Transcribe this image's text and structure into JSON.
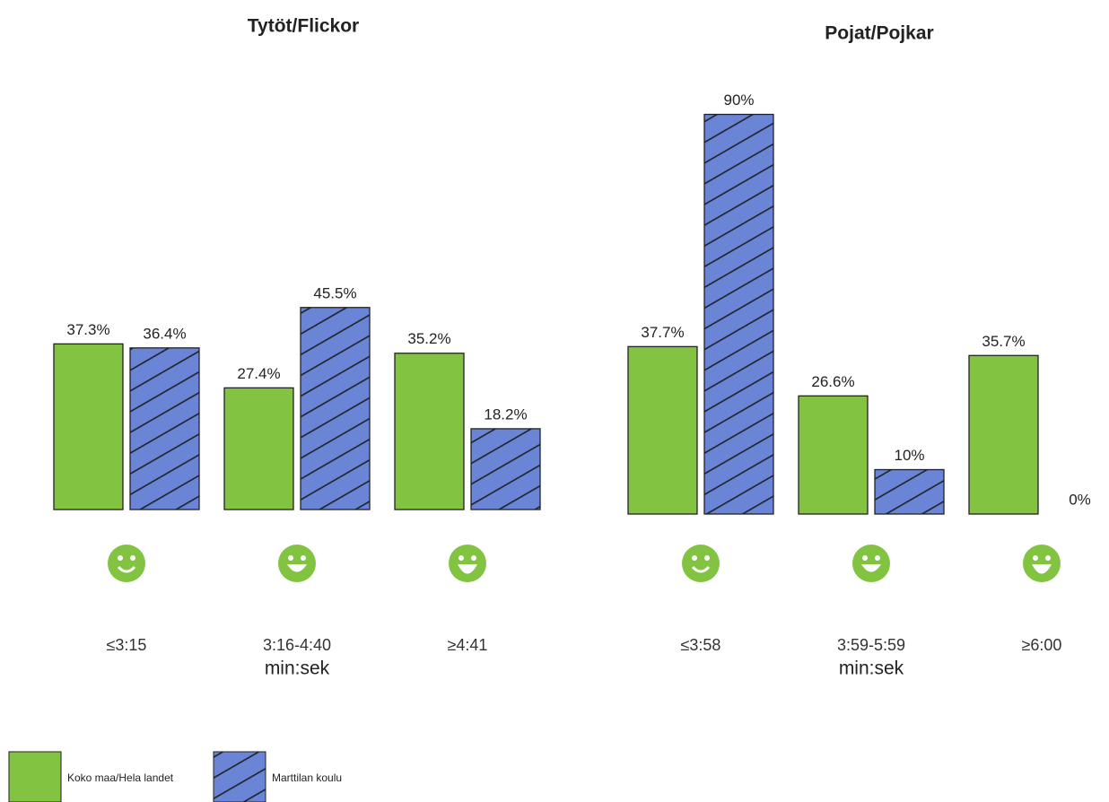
{
  "chart_data": [
    {
      "type": "bar",
      "title": "Tytöt/Flickor",
      "x_label": "min:sek",
      "categories": [
        "≤3:15",
        "3:16-4:40",
        "≥4:41"
      ],
      "ylim": [
        0,
        100
      ],
      "series": [
        {
          "color": "#82c341",
          "values": [
            37.3,
            27.4,
            35.2
          ],
          "value_labels": [
            "37.3%",
            "27.4%",
            "35.2%"
          ]
        },
        {
          "color": "#6a84d6",
          "hatch": true,
          "values": [
            36.4,
            45.5,
            18.2
          ],
          "value_labels": [
            "36.4%",
            "45.5%",
            "18.2%"
          ]
        }
      ]
    },
    {
      "type": "bar",
      "title": "Pojat/Pojkar",
      "x_label": "min:sek",
      "categories": [
        "≤3:58",
        "3:59-5:59",
        "≥6:00"
      ],
      "ylim": [
        0,
        100
      ],
      "series": [
        {
          "color": "#82c341",
          "values": [
            37.7,
            26.6,
            35.7
          ],
          "value_labels": [
            "37.7%",
            "26.6%",
            "35.7%"
          ]
        },
        {
          "color": "#6a84d6",
          "hatch": true,
          "values": [
            90,
            10,
            0
          ],
          "value_labels": [
            "90%",
            "10%",
            "0%"
          ]
        }
      ]
    }
  ],
  "legend": [
    {
      "name": "Koko maa/Hela landet",
      "color": "#82c341"
    },
    {
      "name": "Marttilan koulu",
      "color": "#6a84d6",
      "hatch": true
    }
  ]
}
